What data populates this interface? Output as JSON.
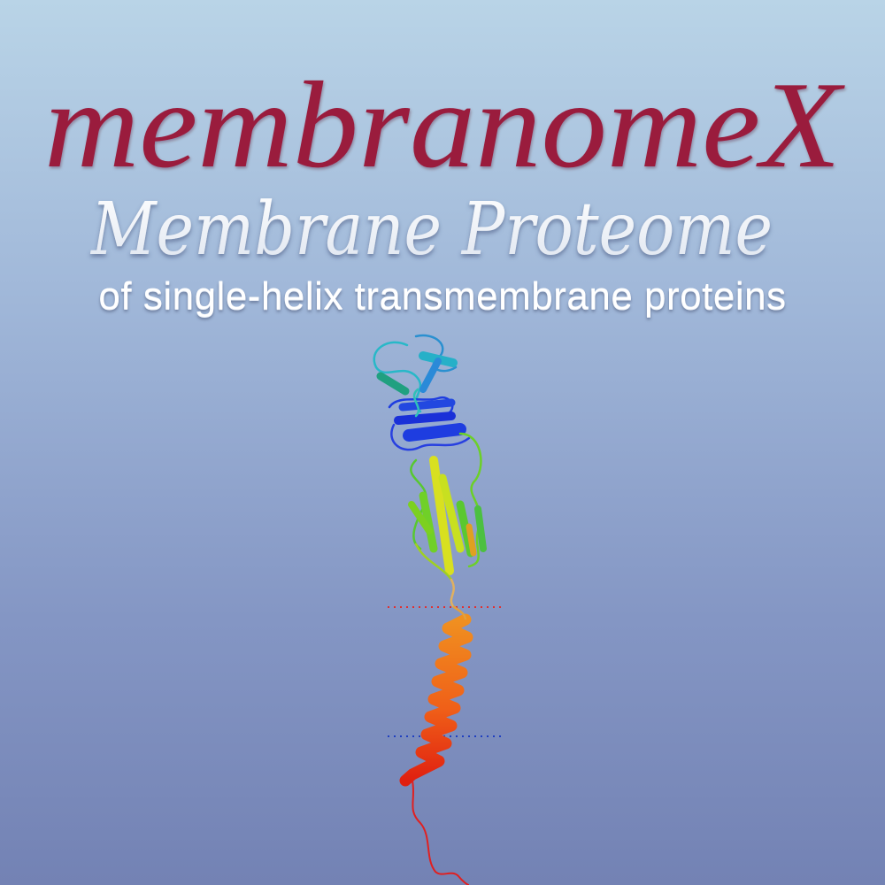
{
  "logo": {
    "title": "membranomeX",
    "subtitle": "Membrane Proteome",
    "tagline": "of single-helix transmembrane proteins",
    "colors": {
      "title": "#9a1a3c",
      "subtitle": "#ffffff",
      "tagline": "#ffffff"
    }
  },
  "illustration": {
    "icon": "protein-ribbon-structure",
    "membrane_boundary_colors": {
      "upper": "#e03030",
      "lower": "#2040c0"
    },
    "colors": {
      "top_domain": [
        "#1e3de0",
        "#2aa8c8",
        "#28c0c8"
      ],
      "middle_domain": [
        "#6cd028",
        "#d8e020",
        "#e0a020"
      ],
      "helix": [
        "#f09020",
        "#f06018",
        "#e02010"
      ],
      "tail": "#e02020"
    }
  }
}
